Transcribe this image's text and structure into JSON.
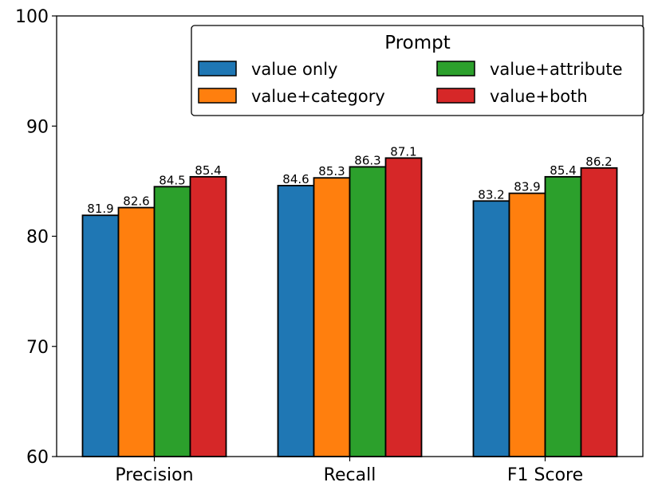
{
  "chart_data": {
    "type": "bar",
    "title": "",
    "xlabel": "",
    "ylabel": "",
    "categories": [
      "Precision",
      "Recall",
      "F1 Score"
    ],
    "ylim": [
      60,
      100
    ],
    "yticks": [
      60,
      70,
      80,
      90,
      100
    ],
    "legend": {
      "title": "Prompt",
      "placement": "top-right",
      "columns": 2
    },
    "series": [
      {
        "name": "value only",
        "color": "#1f77b4",
        "values": [
          81.9,
          84.6,
          83.2
        ],
        "labels": [
          "81.9",
          "84.6",
          "83.2"
        ]
      },
      {
        "name": "value+category",
        "color": "#ff7f0e",
        "values": [
          82.6,
          85.3,
          83.9
        ],
        "labels": [
          "82.6",
          "85.3",
          "83.9"
        ]
      },
      {
        "name": "value+attribute",
        "color": "#2ca02c",
        "values": [
          84.5,
          86.3,
          85.4
        ],
        "labels": [
          "84.5",
          "86.3",
          "85.4"
        ]
      },
      {
        "name": "value+both",
        "color": "#d62728",
        "values": [
          85.4,
          87.1,
          86.2
        ],
        "labels": [
          "85.4",
          "87.1",
          "86.2"
        ]
      }
    ]
  }
}
